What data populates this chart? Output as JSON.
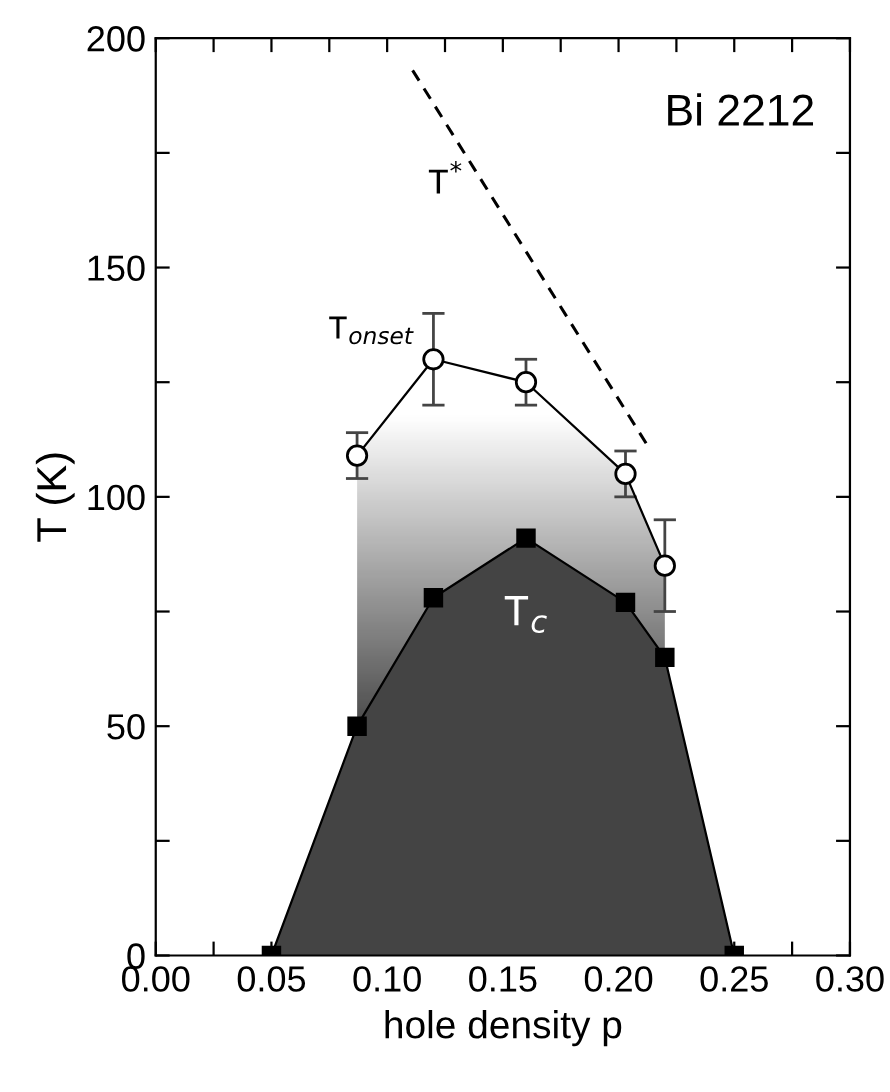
{
  "chart_data": {
    "type": "line",
    "xlabel": "hole density p",
    "ylabel": "T (K)",
    "xlim": [
      0,
      0.3
    ],
    "ylim": [
      0,
      200
    ],
    "xticks": [
      {
        "value": 0,
        "label": "0.00"
      },
      {
        "value": 0.025,
        "label": null
      },
      {
        "value": 0.05,
        "label": "0.05"
      },
      {
        "value": 0.075,
        "label": null
      },
      {
        "value": 0.1,
        "label": "0.10"
      },
      {
        "value": 0.125,
        "label": null
      },
      {
        "value": 0.15,
        "label": "0.15"
      },
      {
        "value": 0.175,
        "label": null
      },
      {
        "value": 0.2,
        "label": "0.20"
      },
      {
        "value": 0.225,
        "label": null
      },
      {
        "value": 0.25,
        "label": "0.25"
      },
      {
        "value": 0.275,
        "label": null
      },
      {
        "value": 0.3,
        "label": "0.30"
      }
    ],
    "yticks": [
      0,
      {
        "value": 25,
        "label": null
      },
      50,
      {
        "value": 75,
        "label": null
      },
      100,
      {
        "value": 125,
        "label": null
      },
      150,
      {
        "value": 175,
        "label": null
      },
      200
    ],
    "grid": false,
    "legend": false,
    "annotations": [
      "Bi 2212"
    ],
    "series": [
      {
        "name": "T$_{c}$",
        "type": "area",
        "color": "#444444",
        "marker": "square",
        "x": [
          0.05,
          0.087,
          0.12,
          0.16,
          0.203,
          0.22,
          0.25
        ],
        "values": [
          0,
          50,
          78,
          91,
          77,
          65,
          0
        ]
      },
      {
        "name": "T$_{onset}$",
        "color": "#000000",
        "marker": "circle",
        "x": [
          0.087,
          0.12,
          0.16,
          0.203,
          0.22
        ],
        "values": [
          109,
          130,
          125,
          105,
          85
        ],
        "errors": [
          5,
          10,
          5,
          5,
          10
        ]
      },
      {
        "name": "T$^{*}$",
        "color": "#000000",
        "marker": "none",
        "line_style": "dashed",
        "x": [
          0.111,
          0.214
        ],
        "values": [
          193,
          110
        ]
      }
    ]
  }
}
